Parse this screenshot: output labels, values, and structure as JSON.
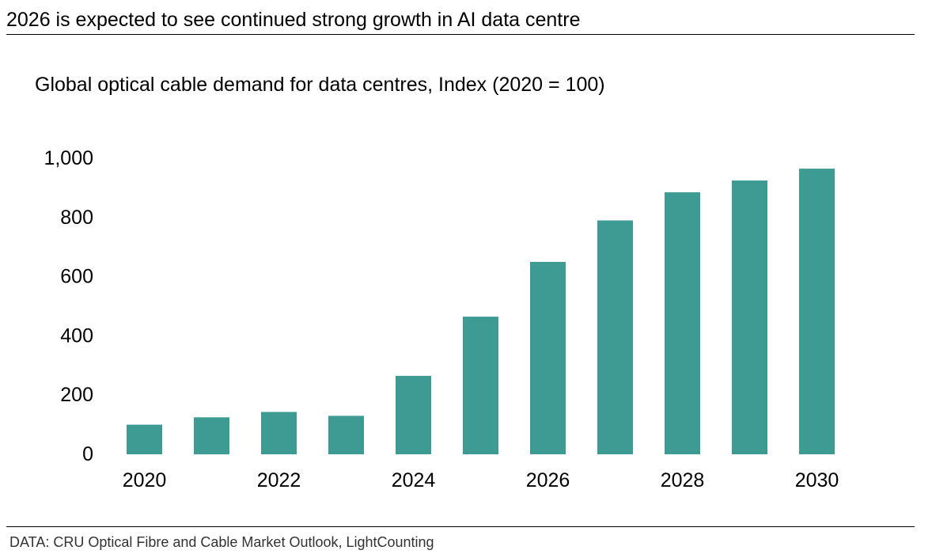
{
  "headline": "2026 is expected to see continued strong growth in AI data centre",
  "source": "DATA: CRU Optical Fibre and Cable Market Outlook, LightCounting",
  "colors": {
    "bar": "#3e9b94",
    "text": "#000000",
    "rule": "#000000"
  },
  "chart_data": {
    "type": "bar",
    "title": "Global optical cable demand for data centres, Index (2020 = 100)",
    "xlabel": "",
    "ylabel": "",
    "categories": [
      "2020",
      "2021",
      "2022",
      "2023",
      "2024",
      "2025",
      "2026",
      "2027",
      "2028",
      "2029",
      "2030"
    ],
    "x_tick_labels": [
      "2020",
      "",
      "2022",
      "",
      "2024",
      "",
      "2026",
      "",
      "2028",
      "",
      "2030"
    ],
    "values": [
      100,
      125,
      143,
      130,
      265,
      465,
      650,
      790,
      885,
      925,
      965
    ],
    "ylim": [
      0,
      1000
    ],
    "y_ticks": [
      0,
      200,
      400,
      600,
      800,
      1000
    ],
    "y_tick_labels": [
      "0",
      "200",
      "400",
      "600",
      "800",
      "1,000"
    ],
    "grid": false,
    "legend": "none"
  }
}
